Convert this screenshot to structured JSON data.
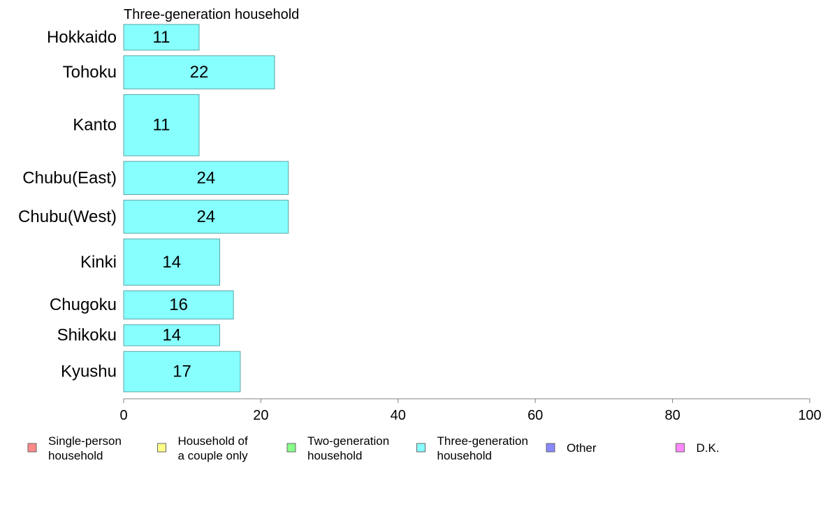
{
  "chart_data": {
    "type": "bar",
    "orientation": "horizontal",
    "title": "Three-generation household",
    "categories": [
      "Hokkaido",
      "Tohoku",
      "Kanto",
      "Chubu(East)",
      "Chubu(West)",
      "Kinki",
      "Chugoku",
      "Shikoku",
      "Kyushu"
    ],
    "values": [
      11,
      22,
      11,
      24,
      24,
      14,
      16,
      14,
      17
    ],
    "weights": [
      1.0,
      1.29,
      2.38,
      1.29,
      1.29,
      1.8,
      1.1,
      0.82,
      1.57
    ],
    "xlim": [
      0,
      100
    ],
    "xticks": [
      0,
      20,
      40,
      60,
      80,
      100
    ],
    "bar_color": "#88ffff",
    "legend": [
      {
        "line1": "Single-person",
        "line2": "household",
        "color": "#ff8888"
      },
      {
        "line1": "Household of",
        "line2": "a couple only",
        "color": "#ffff88"
      },
      {
        "line1": "Two-generation",
        "line2": "household",
        "color": "#88ff88"
      },
      {
        "line1": "Three-generation",
        "line2": "household",
        "color": "#88ffff"
      },
      {
        "line1": "Other",
        "line2": "",
        "color": "#8888ff"
      },
      {
        "line1": "D.K.",
        "line2": "",
        "color": "#ff88ff"
      }
    ],
    "legend_placement": "bottom"
  }
}
